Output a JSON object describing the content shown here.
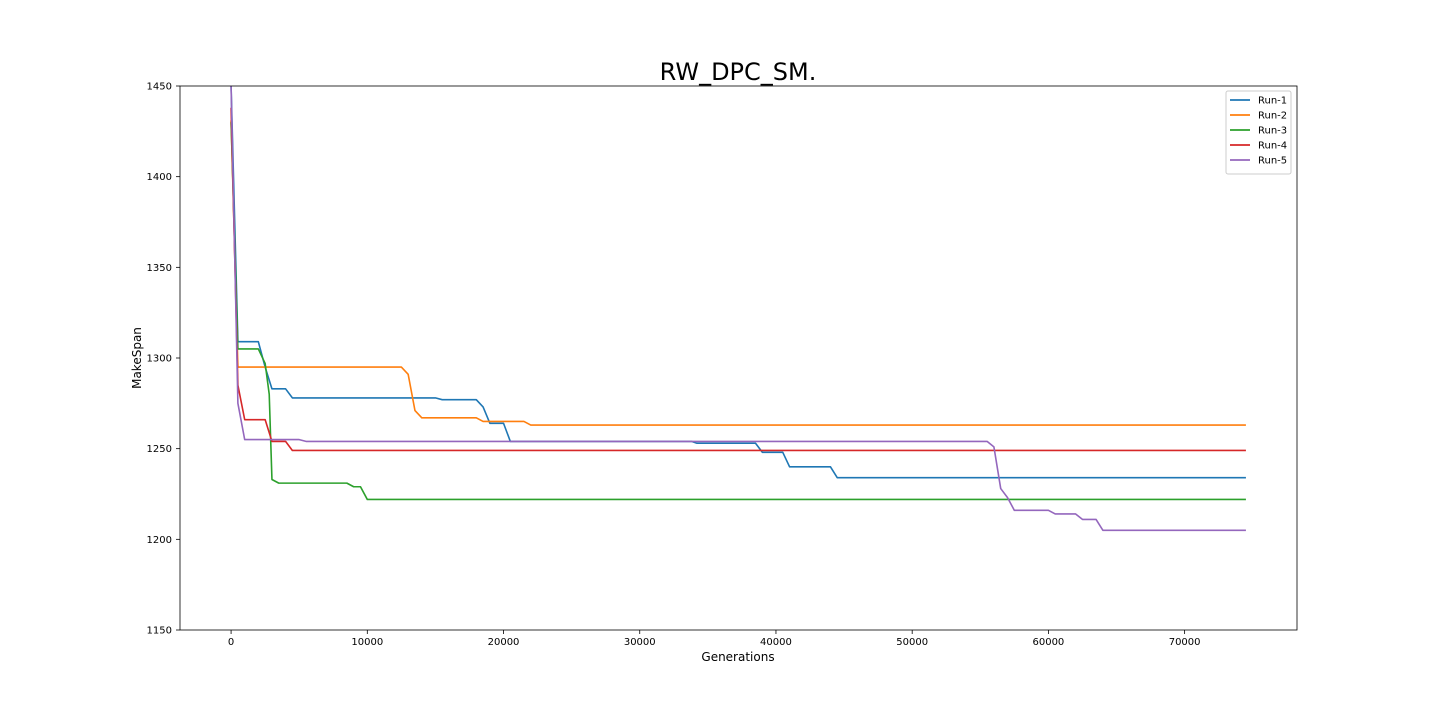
{
  "chart_data": {
    "type": "line",
    "title": "RW_DPC_SM.",
    "xlabel": "Generations",
    "ylabel": "MakeSpan",
    "xlim": [
      -3750,
      78250
    ],
    "ylim": [
      1150,
      1450
    ],
    "xticks": [
      0,
      10000,
      20000,
      30000,
      40000,
      50000,
      60000,
      70000
    ],
    "yticks": [
      1150,
      1200,
      1250,
      1300,
      1350,
      1400,
      1450
    ],
    "grid": false,
    "legend_position": "top-right",
    "series": [
      {
        "name": "Run-1",
        "color": "#1f77b4",
        "points": [
          [
            0,
            1450
          ],
          [
            500,
            1309
          ],
          [
            2000,
            1309
          ],
          [
            2500,
            1295
          ],
          [
            3000,
            1283
          ],
          [
            4000,
            1283
          ],
          [
            4500,
            1278
          ],
          [
            15000,
            1278
          ],
          [
            15500,
            1277
          ],
          [
            18000,
            1277
          ],
          [
            18500,
            1273
          ],
          [
            19000,
            1264
          ],
          [
            20000,
            1264
          ],
          [
            20500,
            1254
          ],
          [
            33800,
            1254
          ],
          [
            34200,
            1253
          ],
          [
            38500,
            1253
          ],
          [
            39000,
            1248
          ],
          [
            40500,
            1248
          ],
          [
            41000,
            1240
          ],
          [
            44000,
            1240
          ],
          [
            44500,
            1234
          ],
          [
            74500,
            1234
          ]
        ]
      },
      {
        "name": "Run-2",
        "color": "#ff7f0e",
        "points": [
          [
            0,
            1431
          ],
          [
            500,
            1295
          ],
          [
            12500,
            1295
          ],
          [
            13000,
            1291
          ],
          [
            13500,
            1271
          ],
          [
            14000,
            1267
          ],
          [
            18000,
            1267
          ],
          [
            18500,
            1265
          ],
          [
            21500,
            1265
          ],
          [
            22000,
            1263
          ],
          [
            74500,
            1263
          ]
        ]
      },
      {
        "name": "Run-3",
        "color": "#2ca02c",
        "points": [
          [
            0,
            1430
          ],
          [
            500,
            1305
          ],
          [
            2000,
            1305
          ],
          [
            2500,
            1297
          ],
          [
            2800,
            1280
          ],
          [
            3000,
            1233
          ],
          [
            3500,
            1231
          ],
          [
            8500,
            1231
          ],
          [
            9000,
            1229
          ],
          [
            9500,
            1229
          ],
          [
            10000,
            1222
          ],
          [
            74500,
            1222
          ]
        ]
      },
      {
        "name": "Run-4",
        "color": "#d62728",
        "points": [
          [
            0,
            1438
          ],
          [
            500,
            1285
          ],
          [
            1000,
            1266
          ],
          [
            2500,
            1266
          ],
          [
            3000,
            1254
          ],
          [
            4000,
            1254
          ],
          [
            4500,
            1249
          ],
          [
            74500,
            1249
          ]
        ]
      },
      {
        "name": "Run-5",
        "color": "#9467bd",
        "points": [
          [
            0,
            1450
          ],
          [
            500,
            1275
          ],
          [
            1000,
            1255
          ],
          [
            5000,
            1255
          ],
          [
            5500,
            1254
          ],
          [
            55500,
            1254
          ],
          [
            56000,
            1251
          ],
          [
            56500,
            1228
          ],
          [
            57000,
            1223
          ],
          [
            57500,
            1216
          ],
          [
            60000,
            1216
          ],
          [
            60500,
            1214
          ],
          [
            62000,
            1214
          ],
          [
            62500,
            1211
          ],
          [
            63500,
            1211
          ],
          [
            64000,
            1205
          ],
          [
            74500,
            1205
          ]
        ]
      }
    ]
  }
}
